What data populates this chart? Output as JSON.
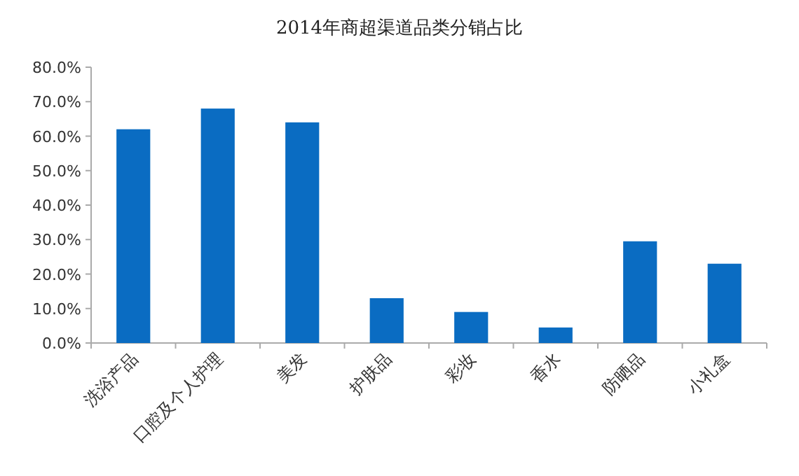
{
  "chart_data": {
    "type": "bar",
    "title": "2014年商超渠道品类分销占比",
    "categories": [
      "洗浴产品",
      "口腔及个人护理",
      "美发",
      "护肤品",
      "彩妆",
      "香水",
      "防晒品",
      "小礼盒"
    ],
    "values": [
      62,
      68,
      64,
      13,
      9,
      4.5,
      29.5,
      23
    ],
    "color": "#0a6cc2",
    "ylim": [
      0,
      80
    ],
    "yticks": [
      {
        "value": 0,
        "label": "0.0%"
      },
      {
        "value": 10,
        "label": "10.0%"
      },
      {
        "value": 20,
        "label": "20.0%"
      },
      {
        "value": 30,
        "label": "30.0%"
      },
      {
        "value": 40,
        "label": "40.0%"
      },
      {
        "value": 50,
        "label": "50.0%"
      },
      {
        "value": 60,
        "label": "60.0%"
      },
      {
        "value": 70,
        "label": "70.0%"
      },
      {
        "value": 80,
        "label": "80.0%"
      }
    ],
    "grid": false
  }
}
